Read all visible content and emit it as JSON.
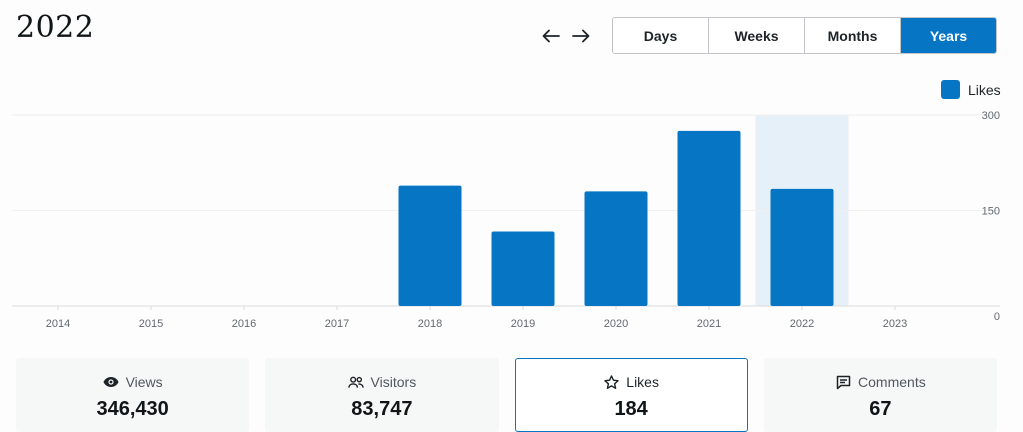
{
  "header": {
    "title": "2022",
    "prev_label": "Previous period",
    "next_label": "Next period"
  },
  "intervals": [
    {
      "label": "Days",
      "active": false
    },
    {
      "label": "Weeks",
      "active": false
    },
    {
      "label": "Months",
      "active": false
    },
    {
      "label": "Years",
      "active": true
    }
  ],
  "legend": {
    "label": "Likes",
    "color": "#0675c4"
  },
  "chart_data": {
    "type": "bar",
    "categories": [
      "2014",
      "2015",
      "2016",
      "2017",
      "2018",
      "2019",
      "2020",
      "2021",
      "2022",
      "2023"
    ],
    "series": [
      {
        "name": "Likes",
        "values": [
          0,
          0,
          0,
          0,
          189,
          117,
          180,
          275,
          184,
          0
        ]
      }
    ],
    "selected_category": "2022",
    "y_ticks": [
      "300",
      "150",
      "0"
    ],
    "ylim": [
      0,
      300
    ],
    "grid": true,
    "bar_color": "#0675c4",
    "highlight_color": "#e6f0f9"
  },
  "cards": [
    {
      "label": "Views",
      "value": "346,430",
      "icon": "eye-icon",
      "active": false
    },
    {
      "label": "Visitors",
      "value": "83,747",
      "icon": "people-icon",
      "active": false
    },
    {
      "label": "Likes",
      "value": "184",
      "icon": "star-icon",
      "active": true
    },
    {
      "label": "Comments",
      "value": "67",
      "icon": "comment-icon",
      "active": false
    }
  ]
}
